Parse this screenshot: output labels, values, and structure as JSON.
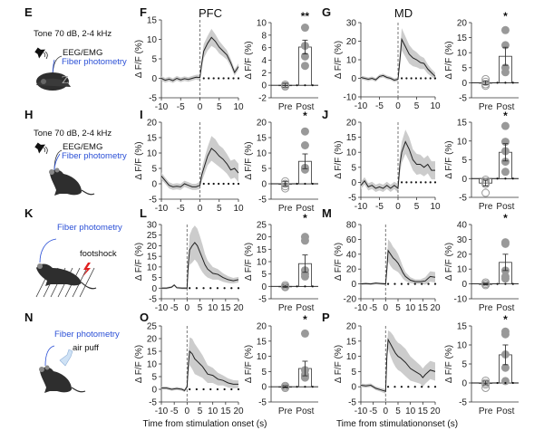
{
  "figure": {
    "row_labels": [
      "E",
      "H",
      "K",
      "N"
    ],
    "schematics": [
      {
        "label": "E",
        "stimulus_text": "Tone 70 dB, 2-4 kHz",
        "recording_text": "EEG/EMG",
        "photometry_text": "Fiber photometry",
        "animal": "sleeping-mouse-icon",
        "stimulus_icon": "speaker-icon"
      },
      {
        "label": "H",
        "stimulus_text": "Tone 70 dB, 2-4 kHz",
        "recording_text": "EEG/EMG",
        "photometry_text": "Fiber photometry",
        "animal": "awake-mouse-icon",
        "stimulus_icon": "speaker-icon"
      },
      {
        "label": "K",
        "stimulus_text": "footshock",
        "recording_text": "",
        "photometry_text": "Fiber photometry",
        "animal": "mouse-on-grid-icon",
        "stimulus_icon": "lightning-icon"
      },
      {
        "label": "N",
        "stimulus_text": "air puff",
        "recording_text": "",
        "photometry_text": "Fiber photometry",
        "animal": "awake-mouse-icon",
        "stimulus_icon": "air-puff-nozzle-icon"
      }
    ],
    "column_titles": {
      "pfc": "PFC",
      "md": "MD"
    },
    "xlabel_left": "Time from stimulation onset (s)",
    "xlabel_right": "Time from stimulationonset (s)",
    "colors": {
      "trace": "#222222",
      "sem_band": "#cccccc",
      "dot_post": "#999999",
      "dot_pre_edge": "#999999",
      "blue_text": "#2a4fd6",
      "lightning": "#e02020"
    }
  },
  "chart_data": [
    {
      "panel": "F",
      "region": "PFC",
      "type": "line",
      "ylabel": "Δ F/F (%)",
      "xlim": [
        -10,
        10
      ],
      "ylim": [
        -5,
        15
      ],
      "xticks": [
        -10,
        -5,
        0,
        5,
        10
      ],
      "yticks": [
        -5,
        0,
        5,
        10,
        15
      ],
      "x": [
        -10,
        -9,
        -8,
        -7,
        -6,
        -5,
        -4,
        -3,
        -2,
        -1,
        0,
        0.5,
        1,
        2,
        3,
        4,
        5,
        6,
        7,
        8,
        9,
        10
      ],
      "y": [
        0,
        -0.5,
        -0.2,
        -0.6,
        0,
        -0.4,
        -0.1,
        -0.3,
        0,
        0.3,
        0.2,
        4,
        7,
        9,
        10.5,
        9.5,
        8,
        7,
        6,
        4,
        1.5,
        3
      ],
      "sem": [
        0.6,
        0.6,
        0.6,
        0.6,
        0.6,
        0.6,
        0.6,
        0.6,
        0.6,
        0.6,
        0.8,
        1.5,
        1.8,
        1.9,
        2.2,
        1.8,
        1.6,
        1.4,
        1.2,
        1.0,
        0.8,
        0.8
      ]
    },
    {
      "panel": "F-bar",
      "region": "PFC",
      "type": "bar",
      "ylabel": "Δ F/F (%)",
      "categories": [
        "Pre",
        "Post"
      ],
      "ylim": [
        -2,
        10
      ],
      "yticks": [
        -2,
        0,
        2,
        4,
        6,
        8,
        10
      ],
      "values": [
        0,
        6.1
      ],
      "errors": [
        0.3,
        1.1
      ],
      "points": [
        [
          -0.2,
          -0.1,
          0.1
        ],
        [
          9.2,
          6.3,
          4.6,
          3.1
        ]
      ],
      "significance": "**"
    },
    {
      "panel": "G",
      "region": "MD",
      "type": "line",
      "ylabel": "Δ F/F (%)",
      "xlim": [
        -10,
        10
      ],
      "ylim": [
        -10,
        30
      ],
      "xticks": [
        -10,
        -5,
        0,
        5,
        10
      ],
      "yticks": [
        -10,
        0,
        10,
        20,
        30
      ],
      "x": [
        -10,
        -9,
        -8,
        -7,
        -6,
        -5,
        -4,
        -3,
        -2,
        -1,
        0,
        0.5,
        1,
        2,
        3,
        4,
        5,
        6,
        7,
        8,
        9,
        10
      ],
      "y": [
        0.5,
        0,
        -0.5,
        0,
        -0.8,
        1,
        1.5,
        0.5,
        0,
        -1,
        -0.5,
        10,
        21,
        17,
        13,
        11,
        10,
        8.5,
        8,
        5,
        3,
        1
      ],
      "sem": [
        1,
        1,
        1,
        1,
        1,
        1,
        1,
        1,
        1,
        1,
        1,
        4,
        6,
        5.5,
        5,
        4.5,
        4,
        3.5,
        3,
        2.5,
        2,
        2
      ]
    },
    {
      "panel": "G-bar",
      "region": "MD",
      "type": "bar",
      "ylabel": "Δ F/F (%)",
      "categories": [
        "Pre",
        "Post"
      ],
      "ylim": [
        -5,
        20
      ],
      "yticks": [
        -5,
        0,
        5,
        10,
        15,
        20
      ],
      "values": [
        0,
        8.8
      ],
      "errors": [
        0.6,
        3.0
      ],
      "points": [
        [
          1.2,
          0.3,
          -0.5,
          -1.0
        ],
        [
          17.5,
          12.5,
          5,
          3.5
        ]
      ],
      "significance": "*"
    },
    {
      "panel": "I",
      "region": "PFC",
      "type": "line",
      "ylabel": "Δ F/F (%)",
      "xlim": [
        -10,
        10
      ],
      "ylim": [
        -5,
        20
      ],
      "xticks": [
        -10,
        -5,
        0,
        5,
        10
      ],
      "yticks": [
        -5,
        0,
        5,
        10,
        15,
        20
      ],
      "x": [
        -10,
        -9,
        -8,
        -7,
        -6,
        -5,
        -4,
        -3,
        -2,
        -1,
        0,
        0.5,
        1,
        2,
        3,
        4,
        5,
        6,
        7,
        8,
        9,
        10
      ],
      "y": [
        2.5,
        1,
        -0.5,
        -1,
        -0.8,
        -1,
        0,
        -0.5,
        -1,
        -1,
        -0.5,
        3,
        5,
        9,
        11.5,
        10.5,
        9,
        8,
        6.5,
        4.5,
        5,
        3.5
      ],
      "sem": [
        1.2,
        1,
        1,
        1,
        1,
        1,
        1,
        1,
        1,
        1,
        1.2,
        2,
        2.5,
        3,
        4,
        4,
        3.5,
        3.5,
        3.2,
        3,
        3,
        3
      ]
    },
    {
      "panel": "I-bar",
      "region": "PFC",
      "type": "bar",
      "ylabel": "Δ F/F (%)",
      "categories": [
        "Pre",
        "Post"
      ],
      "ylim": [
        -5,
        20
      ],
      "yticks": [
        -5,
        0,
        5,
        10,
        15,
        20
      ],
      "values": [
        0,
        7.3
      ],
      "errors": [
        0.8,
        2.4
      ],
      "points": [
        [
          0.8,
          0,
          -0.8,
          -1.5
        ],
        [
          17,
          12.5,
          5.2,
          4.6
        ]
      ],
      "significance": "*"
    },
    {
      "panel": "J",
      "region": "MD",
      "type": "line",
      "ylabel": "Δ F/F (%)",
      "xlim": [
        -10,
        10
      ],
      "ylim": [
        -5,
        20
      ],
      "xticks": [
        -10,
        -5,
        0,
        5,
        10
      ],
      "yticks": [
        -5,
        0,
        5,
        10,
        15,
        20
      ],
      "x": [
        -10,
        -9,
        -8,
        -7,
        -6,
        -5,
        -4,
        -3,
        -2,
        -1,
        0,
        0.5,
        1,
        2,
        3,
        4,
        5,
        6,
        7,
        8,
        9,
        10
      ],
      "y": [
        -1,
        0.5,
        -1.5,
        -1,
        -2,
        -1.5,
        -2,
        -1,
        -2,
        -1,
        -2,
        6,
        10,
        13.5,
        11,
        7.5,
        6,
        6,
        5,
        6,
        4,
        4
      ],
      "sem": [
        1.2,
        1.2,
        1.2,
        1.2,
        1.2,
        1.2,
        1.2,
        1.2,
        1.2,
        1.2,
        1.4,
        3,
        3.5,
        4,
        4,
        3.5,
        3.5,
        3.2,
        3,
        3,
        3,
        3
      ]
    },
    {
      "panel": "J-bar",
      "region": "MD",
      "type": "bar",
      "ylabel": "Δ F/F (%)",
      "categories": [
        "Pre",
        "Post"
      ],
      "ylim": [
        -5,
        15
      ],
      "yticks": [
        -5,
        0,
        5,
        10,
        15
      ],
      "values": [
        -1.2,
        7.0
      ],
      "errors": [
        0.8,
        2.3
      ],
      "points": [
        [
          -0.3,
          -1,
          -1.5,
          -3.8
        ],
        [
          14,
          9.8,
          7.3,
          4.5,
          1.8
        ]
      ],
      "significance": "*"
    },
    {
      "panel": "L",
      "region": "PFC",
      "type": "line",
      "ylabel": "Δ F/F (%)",
      "xlim": [
        -10,
        20
      ],
      "ylim": [
        -5,
        30
      ],
      "xticks": [
        -10,
        -5,
        0,
        5,
        10,
        15,
        20
      ],
      "yticks": [
        -5,
        0,
        5,
        10,
        15,
        20,
        25,
        30
      ],
      "x": [
        -10,
        -8,
        -6,
        -5,
        -4,
        -2,
        0,
        0.5,
        1,
        2,
        3,
        4,
        5,
        6,
        7,
        8,
        10,
        12,
        14,
        16,
        18,
        20
      ],
      "y": [
        0,
        0,
        0.5,
        1.5,
        0.2,
        0,
        0,
        12,
        18,
        20,
        21.5,
        20,
        17,
        14,
        11,
        9,
        7,
        6.5,
        5,
        4,
        3.5,
        4
      ],
      "sem": [
        0.5,
        0.5,
        0.5,
        0.5,
        0.5,
        0.5,
        0.6,
        4,
        7,
        8,
        8,
        8,
        7.5,
        6.5,
        5,
        4,
        3,
        2.5,
        2,
        1.6,
        1.3,
        1.3
      ]
    },
    {
      "panel": "L-bar",
      "region": "PFC",
      "type": "bar",
      "ylabel": "Δ F/F (%)",
      "categories": [
        "Pre",
        "Post"
      ],
      "ylim": [
        -5,
        25
      ],
      "yticks": [
        -5,
        0,
        5,
        10,
        15,
        20,
        25
      ],
      "values": [
        0,
        9.2
      ],
      "errors": [
        0.5,
        3.5
      ],
      "points": [
        [
          0.5,
          0,
          -0.3
        ],
        [
          20,
          18.5,
          6.5,
          5,
          4
        ]
      ],
      "significance": "*"
    },
    {
      "panel": "M",
      "region": "MD",
      "type": "line",
      "ylabel": "Δ F/F (%)",
      "xlim": [
        -10,
        20
      ],
      "ylim": [
        -20,
        80
      ],
      "xticks": [
        -10,
        -5,
        0,
        5,
        10,
        15,
        20
      ],
      "yticks": [
        -20,
        0,
        20,
        40,
        60,
        80
      ],
      "x": [
        -10,
        -8,
        -6,
        -4,
        -2,
        0,
        0.5,
        1,
        2,
        3,
        4,
        5,
        6,
        7,
        8,
        10,
        12,
        14,
        16,
        18,
        20
      ],
      "y": [
        0,
        0.5,
        0,
        1,
        0.5,
        0,
        20,
        45,
        40,
        35,
        32,
        28,
        22,
        15,
        10,
        5,
        3,
        3,
        4,
        10,
        9
      ],
      "sem": [
        1.5,
        1.5,
        1.5,
        1.5,
        1.5,
        2,
        8,
        15,
        16,
        15,
        14,
        12,
        10,
        8,
        6,
        4,
        3,
        3,
        5,
        7,
        7
      ]
    },
    {
      "panel": "M-bar",
      "region": "MD",
      "type": "bar",
      "ylabel": "Δ F/F (%)",
      "categories": [
        "Pre",
        "Post"
      ],
      "ylim": [
        -10,
        40
      ],
      "yticks": [
        -10,
        0,
        10,
        20,
        30,
        40
      ],
      "values": [
        0,
        14.5
      ],
      "errors": [
        0.6,
        5.5
      ],
      "points": [
        [
          1,
          0,
          -0.8
        ],
        [
          28,
          27,
          9,
          5,
          3.5
        ]
      ],
      "significance": "*"
    },
    {
      "panel": "O",
      "region": "PFC",
      "type": "line",
      "ylabel": "Δ F/F (%)",
      "xlim": [
        -10,
        20
      ],
      "ylim": [
        -5,
        25
      ],
      "xticks": [
        -10,
        -5,
        0,
        5,
        10,
        15,
        20
      ],
      "yticks": [
        -5,
        0,
        5,
        10,
        15,
        20,
        25
      ],
      "x": [
        -10,
        -8,
        -6,
        -4,
        -2,
        -1,
        0,
        0.5,
        1,
        2,
        3,
        4,
        5,
        6,
        8,
        10,
        12,
        14,
        16,
        18,
        20
      ],
      "y": [
        0.5,
        0.5,
        0,
        0.3,
        0,
        -0.5,
        1,
        10,
        15,
        14,
        12,
        11,
        10,
        9,
        6,
        5.5,
        4,
        3.5,
        2.5,
        2,
        2
      ],
      "sem": [
        0.6,
        0.6,
        0.6,
        0.6,
        0.6,
        0.6,
        0.8,
        4,
        5.5,
        6,
        6,
        5.5,
        5,
        4.5,
        3.5,
        3,
        2.5,
        2,
        1.8,
        1.6,
        1.5
      ]
    },
    {
      "panel": "O-bar",
      "region": "PFC",
      "type": "bar",
      "ylabel": "Δ F/F (%)",
      "categories": [
        "Pre",
        "Post"
      ],
      "ylim": [
        -5,
        20
      ],
      "yticks": [
        -5,
        0,
        5,
        10,
        15,
        20
      ],
      "values": [
        0,
        6.0
      ],
      "errors": [
        0.4,
        2.4
      ],
      "points": [
        [
          0.3,
          0,
          -0.4
        ],
        [
          17.5,
          5.5,
          4,
          3.5,
          3
        ]
      ],
      "significance": "*"
    },
    {
      "panel": "P",
      "region": "MD",
      "type": "line",
      "ylabel": "Δ F/F (%)",
      "xlim": [
        -10,
        20
      ],
      "ylim": [
        -5,
        20
      ],
      "xticks": [
        -10,
        -5,
        0,
        5,
        10,
        15,
        20
      ],
      "yticks": [
        -5,
        0,
        5,
        10,
        15,
        20
      ],
      "x": [
        -10,
        -8,
        -6,
        -4,
        -2,
        0,
        0.5,
        1,
        2,
        3,
        4,
        5,
        6,
        8,
        10,
        12,
        14,
        15,
        16,
        18,
        20
      ],
      "y": [
        0.5,
        0.3,
        0.5,
        -0.5,
        -1,
        -1.5,
        10,
        15.5,
        14,
        12.5,
        11,
        10,
        9.5,
        8,
        6,
        5,
        4,
        3,
        4,
        5.5,
        5
      ],
      "sem": [
        0.6,
        0.6,
        0.6,
        0.6,
        0.6,
        0.8,
        2.5,
        3,
        4,
        4.5,
        4.5,
        4.5,
        4.5,
        4.5,
        4,
        3.5,
        3,
        3,
        3,
        3,
        3
      ]
    },
    {
      "panel": "P-bar",
      "region": "MD",
      "type": "bar",
      "ylabel": "Δ F/F (%)",
      "categories": [
        "Pre",
        "Post"
      ],
      "ylim": [
        -5,
        15
      ],
      "yticks": [
        -5,
        0,
        5,
        10,
        15
      ],
      "values": [
        0,
        7.4
      ],
      "errors": [
        0.5,
        2.6
      ],
      "points": [
        [
          0.6,
          0,
          -0.4,
          -1.3
        ],
        [
          13.5,
          12.8,
          7.5,
          4,
          0.5
        ]
      ],
      "significance": "*"
    }
  ]
}
